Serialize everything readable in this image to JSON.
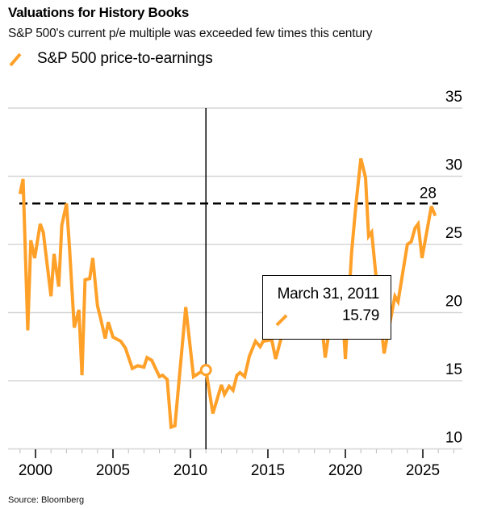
{
  "header": {
    "title": "Valuations for History Books",
    "subtitle": "S&P 500's current p/e multiple was exceeded few times this century"
  },
  "legend": {
    "label": "S&P 500 price-to-earnings",
    "icon": "orange-line-swatch-icon"
  },
  "source": "Source: Bloomberg",
  "colors": {
    "series": "#FFA028",
    "gridline": "#d6d6d6",
    "reference": "#000000",
    "crosshair": "#000000"
  },
  "tooltip": {
    "date": "March 31, 2011",
    "value": "15.79"
  },
  "chart_data": {
    "type": "line",
    "title": "Valuations for History Books",
    "subtitle": "S&P 500's current p/e multiple was exceeded few times this century",
    "xlabel": "",
    "ylabel": "",
    "xlim": [
      1998.8,
      2027.5
    ],
    "ylim": [
      10,
      35
    ],
    "x_ticks": [
      2000,
      2005,
      2010,
      2015,
      2020,
      2025
    ],
    "x_tick_labels": [
      "2000",
      "2005",
      "2010",
      "2015",
      "2020",
      "2025"
    ],
    "y_ticks": [
      10,
      15,
      20,
      25,
      30,
      35
    ],
    "y_tick_labels": [
      "10",
      "15",
      "20",
      "25",
      "30",
      "35"
    ],
    "grid": "horizontal",
    "legend_position": "top-left",
    "reference_line": {
      "value": 28,
      "label": "28",
      "style": "dashed"
    },
    "highlight": {
      "x": 2011.0,
      "y": 15.79,
      "label": "March 31, 2011"
    },
    "series": [
      {
        "name": "S&P 500 price-to-earnings",
        "x": [
          1999.0,
          1999.2,
          1999.5,
          1999.7,
          1999.95,
          2000.3,
          2000.5,
          2001.0,
          2001.2,
          2001.5,
          2001.7,
          2002.0,
          2002.2,
          2002.5,
          2002.8,
          2003.0,
          2003.2,
          2003.5,
          2003.7,
          2004.0,
          2004.2,
          2004.5,
          2004.7,
          2005.0,
          2005.5,
          2005.8,
          2006.25,
          2006.6,
          2007.0,
          2007.2,
          2007.5,
          2008.0,
          2008.2,
          2008.5,
          2008.75,
          2009.0,
          2009.7,
          2010.2,
          2010.6,
          2011.0,
          2011.45,
          2012.0,
          2012.2,
          2012.5,
          2012.75,
          2013.0,
          2013.2,
          2013.5,
          2013.8,
          2014.2,
          2014.5,
          2014.7,
          2015.25,
          2015.5,
          2015.8,
          2016.25,
          2016.75,
          2017.25,
          2017.75,
          2018.0,
          2018.4,
          2018.7,
          2019.0,
          2019.4,
          2019.75,
          2020.0,
          2020.4,
          2020.7,
          2021.0,
          2021.3,
          2021.5,
          2021.7,
          2022.0,
          2022.5,
          2022.8,
          2023.2,
          2023.4,
          2024.0,
          2024.25,
          2024.5,
          2024.7,
          2024.95,
          2025.55,
          2025.8
        ],
        "values": [
          28.7,
          29.8,
          18.7,
          25.3,
          24.0,
          26.5,
          25.9,
          21.2,
          24.3,
          21.9,
          26.4,
          28.0,
          24.7,
          18.9,
          20.2,
          15.4,
          22.4,
          22.5,
          24.0,
          20.5,
          19.6,
          18.1,
          19.3,
          18.2,
          17.9,
          17.4,
          15.9,
          16.1,
          16.0,
          16.7,
          16.5,
          15.3,
          15.4,
          15.1,
          11.6,
          11.7,
          20.4,
          15.3,
          15.6,
          15.79,
          12.6,
          14.7,
          14.0,
          14.6,
          14.3,
          15.4,
          15.6,
          15.3,
          16.8,
          17.9,
          17.5,
          17.9,
          18.0,
          16.6,
          17.9,
          19.5,
          20.5,
          21.0,
          21.8,
          21.2,
          20.0,
          16.7,
          19.0,
          20.5,
          21.5,
          16.6,
          24.4,
          28.1,
          31.3,
          29.9,
          25.6,
          25.9,
          22.4,
          17.0,
          18.8,
          21.2,
          20.8,
          25.0,
          25.2,
          26.2,
          26.5,
          24.0,
          27.8,
          27.1
        ]
      }
    ]
  }
}
